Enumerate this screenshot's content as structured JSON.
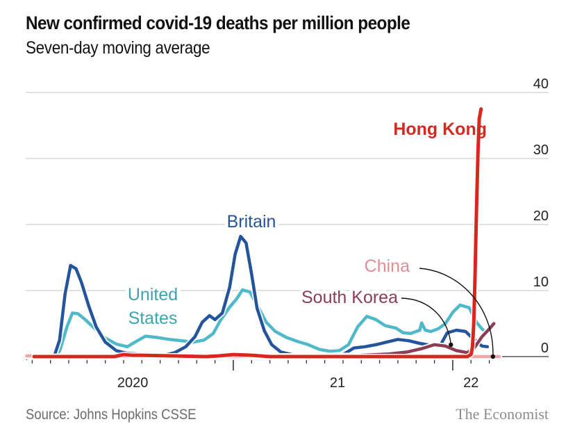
{
  "header": {
    "title": "New confirmed covid-19 deaths per million people",
    "subtitle": "Seven-day moving average"
  },
  "footer": {
    "source": "Source: Johns Hopkins CSSE",
    "brand": "The Economist"
  },
  "chart_data": {
    "type": "line",
    "title": "New confirmed covid-19 deaths per million people",
    "subtitle": "Seven-day moving average",
    "xlabel": "",
    "ylabel": "",
    "x_unit": "months since January 2020",
    "xlim": [
      0.7,
      26.55
    ],
    "ylim": [
      0,
      40
    ],
    "y_ticks": [
      0,
      10,
      20,
      30,
      40
    ],
    "y_tick_labels": [
      "0",
      "10",
      "20",
      "30",
      "40"
    ],
    "x_ticks_major": [
      {
        "t": 12,
        "label": "21"
      },
      {
        "t": 24,
        "label": "22"
      }
    ],
    "x_year_labels": [
      {
        "t": 6.5,
        "label": "2020"
      },
      {
        "t": 17.7,
        "label": "21"
      },
      {
        "t": 25,
        "label": "22"
      }
    ],
    "grid": true,
    "y_axis_position": "right",
    "legend": "inline labels",
    "series": [
      {
        "name": "United States",
        "color": "#4fb8c9",
        "label_color": "#3ca4b0",
        "points": [
          [
            0.7,
            0
          ],
          [
            2.0,
            0
          ],
          [
            2.5,
            0.8
          ],
          [
            2.9,
            4.5
          ],
          [
            3.2,
            6.6
          ],
          [
            3.5,
            6.5
          ],
          [
            3.9,
            5.6
          ],
          [
            4.4,
            4.3
          ],
          [
            5.0,
            2.8
          ],
          [
            5.6,
            1.9
          ],
          [
            6.2,
            1.5
          ],
          [
            6.7,
            2.3
          ],
          [
            7.2,
            3.1
          ],
          [
            7.8,
            2.9
          ],
          [
            8.5,
            2.6
          ],
          [
            9.2,
            2.4
          ],
          [
            9.8,
            2.2
          ],
          [
            10.4,
            2.5
          ],
          [
            10.9,
            3.5
          ],
          [
            11.3,
            5.5
          ],
          [
            11.8,
            7.5
          ],
          [
            12.2,
            8.8
          ],
          [
            12.5,
            10.1
          ],
          [
            12.9,
            9.8
          ],
          [
            13.3,
            7.8
          ],
          [
            13.8,
            5.2
          ],
          [
            14.3,
            3.8
          ],
          [
            14.9,
            2.9
          ],
          [
            15.5,
            2.3
          ],
          [
            16.1,
            1.8
          ],
          [
            16.7,
            1.1
          ],
          [
            17.3,
            0.8
          ],
          [
            17.8,
            0.9
          ],
          [
            18.3,
            1.8
          ],
          [
            18.8,
            4.5
          ],
          [
            19.3,
            6.1
          ],
          [
            19.8,
            5.6
          ],
          [
            20.3,
            4.7
          ],
          [
            20.9,
            4.3
          ],
          [
            21.3,
            3.6
          ],
          [
            21.7,
            3.5
          ],
          [
            22.2,
            4.0
          ],
          [
            22.3,
            5.1
          ],
          [
            22.5,
            4.0
          ],
          [
            22.8,
            3.8
          ],
          [
            23.2,
            4.2
          ],
          [
            23.6,
            5.0
          ],
          [
            24.0,
            6.7
          ],
          [
            24.4,
            7.8
          ],
          [
            24.9,
            7.4
          ],
          [
            25.3,
            5.2
          ],
          [
            25.6,
            4.2
          ],
          [
            25.8,
            3.7
          ]
        ]
      },
      {
        "name": "Britain",
        "color": "#24549b",
        "label_color": "#24549b",
        "points": [
          [
            0.7,
            0
          ],
          [
            2.2,
            0
          ],
          [
            2.5,
            2.5
          ],
          [
            2.8,
            9.5
          ],
          [
            3.1,
            13.8
          ],
          [
            3.4,
            13.3
          ],
          [
            3.7,
            11.2
          ],
          [
            4.1,
            7.6
          ],
          [
            4.5,
            4.5
          ],
          [
            5.0,
            2.2
          ],
          [
            5.6,
            0.9
          ],
          [
            6.2,
            0.5
          ],
          [
            6.8,
            0.4
          ],
          [
            7.5,
            0.3
          ],
          [
            8.2,
            0.2
          ],
          [
            8.8,
            0.6
          ],
          [
            9.4,
            1.5
          ],
          [
            9.9,
            3.0
          ],
          [
            10.3,
            5.2
          ],
          [
            10.7,
            6.2
          ],
          [
            11.0,
            5.6
          ],
          [
            11.4,
            6.6
          ],
          [
            11.8,
            10.5
          ],
          [
            12.1,
            15.5
          ],
          [
            12.4,
            18.2
          ],
          [
            12.7,
            17.2
          ],
          [
            13.0,
            12.5
          ],
          [
            13.3,
            7.3
          ],
          [
            13.7,
            3.9
          ],
          [
            14.1,
            1.8
          ],
          [
            14.6,
            0.7
          ],
          [
            15.2,
            0.3
          ],
          [
            16.0,
            0.2
          ],
          [
            17.0,
            0.1
          ],
          [
            18.0,
            0.3
          ],
          [
            18.6,
            1.3
          ],
          [
            19.2,
            1.5
          ],
          [
            19.8,
            1.8
          ],
          [
            20.4,
            2.2
          ],
          [
            21.0,
            2.6
          ],
          [
            21.6,
            2.4
          ],
          [
            22.2,
            2.0
          ],
          [
            22.8,
            1.7
          ],
          [
            23.3,
            1.6
          ],
          [
            23.7,
            3.6
          ],
          [
            24.2,
            4.0
          ],
          [
            24.7,
            3.8
          ],
          [
            25.0,
            3.0
          ],
          [
            25.3,
            2.3
          ],
          [
            25.6,
            1.6
          ],
          [
            25.9,
            1.5
          ]
        ]
      },
      {
        "name": "South Korea",
        "color": "#8a3d53",
        "label_color": "#8a3d53",
        "points": [
          [
            0.7,
            0
          ],
          [
            8.0,
            0
          ],
          [
            8.5,
            0.1
          ],
          [
            10.0,
            0.1
          ],
          [
            11.5,
            0.2
          ],
          [
            12.0,
            0.4
          ],
          [
            12.3,
            0.3
          ],
          [
            13.0,
            0.2
          ],
          [
            14.0,
            0.1
          ],
          [
            17.0,
            0.1
          ],
          [
            19.0,
            0.2
          ],
          [
            20.5,
            0.4
          ],
          [
            21.5,
            0.7
          ],
          [
            22.3,
            1.2
          ],
          [
            23.0,
            1.8
          ],
          [
            23.6,
            1.6
          ],
          [
            24.2,
            0.9
          ],
          [
            24.8,
            0.6
          ],
          [
            25.2,
            1.4
          ],
          [
            25.6,
            3.0
          ],
          [
            26.0,
            4.2
          ],
          [
            26.25,
            5.0
          ]
        ]
      },
      {
        "name": "China",
        "color": "#f0a7ab",
        "label_color": "#e08e94",
        "points": [
          [
            0.7,
            0.1
          ],
          [
            1.1,
            0.1
          ],
          [
            1.4,
            0.05
          ],
          [
            10.0,
            0.0
          ],
          [
            26.55,
            0.0
          ]
        ]
      },
      {
        "name": "Hong Kong",
        "color": "#d9271e",
        "label_color": "#d12c24",
        "points": [
          [
            1.1,
            0
          ],
          [
            5.5,
            0
          ],
          [
            6.0,
            0.3
          ],
          [
            6.5,
            0.2
          ],
          [
            7.0,
            0.2
          ],
          [
            10.5,
            0
          ],
          [
            11.2,
            0.1
          ],
          [
            12.0,
            0.3
          ],
          [
            13.0,
            0.2
          ],
          [
            14.0,
            0
          ],
          [
            24.8,
            0
          ],
          [
            25.0,
            0.3
          ],
          [
            25.08,
            1.5
          ],
          [
            25.15,
            5
          ],
          [
            25.22,
            12
          ],
          [
            25.3,
            22
          ],
          [
            25.38,
            31
          ],
          [
            25.45,
            36
          ],
          [
            25.55,
            37.5
          ]
        ]
      }
    ],
    "annotations": [
      {
        "text": "Hong Kong",
        "series": "Hong Kong"
      },
      {
        "text": "Britain",
        "series": "Britain"
      },
      {
        "text": "United",
        "series": "United States"
      },
      {
        "text": "States",
        "series": "United States"
      },
      {
        "text": "China",
        "series": "China",
        "callout_to": [
          26.2,
          0
        ]
      },
      {
        "text": "South Korea",
        "series": "South Korea",
        "callout_to": [
          23.9,
          1.8
        ]
      }
    ]
  }
}
